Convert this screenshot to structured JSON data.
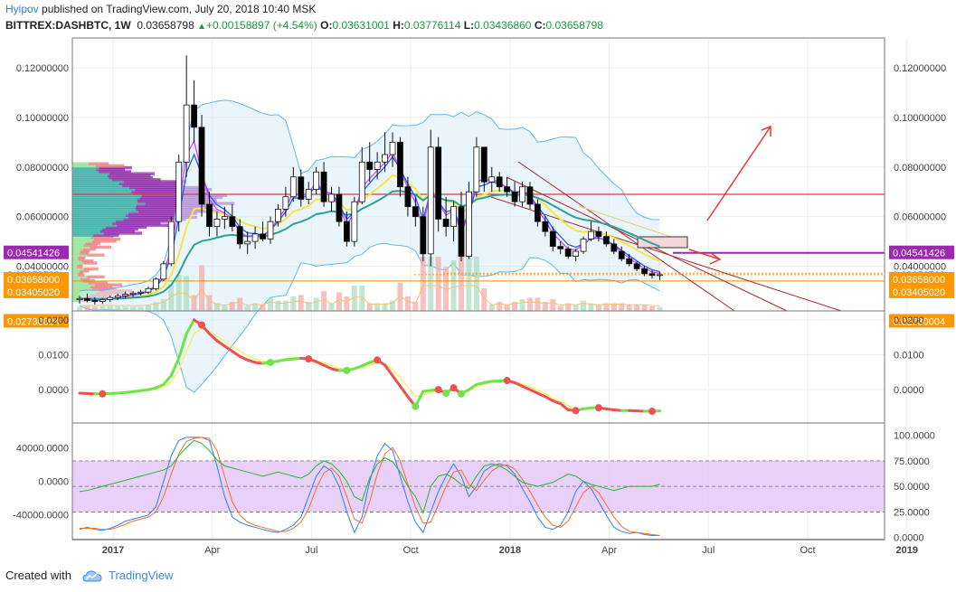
{
  "header": {
    "author": "Hyipov",
    "published": " published on TradingView.com, July 20, 2018 10:40 MSK",
    "symbol": "BITTREX:DASHBTC, 1W",
    "last": "0.03658798",
    "change_arrow": "▲",
    "change": "+0.00158897 (+4.54%)",
    "o_label": "O:",
    "o_value": "0.03631001",
    "h_label": "H:",
    "h_value": "0.03776114",
    "l_label": "L:",
    "l_value": "0.03436860",
    "c_label": "C:",
    "c_value": "0.03658798"
  },
  "footer": {
    "created_with": "Created with",
    "brand": "TradingView"
  },
  "colors": {
    "bull": "#ffffff",
    "bear": "#000000",
    "purple_level": "#9c27b0",
    "orange_level": "#ff9800",
    "red_level": "#e53935",
    "bb": "#5eb8f0",
    "ema_yellow": "#f5e642",
    "ema_teal": "#2aa198",
    "ema_blue": "#1e5cff",
    "ema_magenta": "#e040fb",
    "osc_up": "#6fe34a",
    "osc_down": "#f05050",
    "osc_signal": "#ffee58",
    "stoch_k": "#2f80ed",
    "stoch_d": "#f0702a",
    "stoch_rsi": "#22b82a",
    "stoch_band": "#e3c4f8"
  },
  "chart_data": [
    {
      "type": "candlestick",
      "pane": "price",
      "ylim": [
        0.022,
        0.132
      ],
      "yticks": [
        "0.12000000",
        "0.10000000",
        "0.08000000",
        "0.06000000",
        "0.04000000"
      ],
      "xticks": [
        "2017",
        "Apr",
        "Jul",
        "Oct",
        "2018",
        "Apr",
        "Jul",
        "Oct",
        "2019"
      ],
      "price_labels": [
        {
          "value": 0.04541426,
          "text": "0.04541426",
          "color": "#9c27b0"
        },
        {
          "value": 0.03658798,
          "text": "0.03658798",
          "color": "#ffffff"
        },
        {
          "value": 0.03658,
          "text": "0.03658000",
          "color": "#ff9800"
        },
        {
          "value": 0.0340502,
          "text": "0.03405020",
          "color": "#ff9800"
        },
        {
          "value": 0.02730004,
          "text": "0.02730004",
          "color": "#ff9800"
        }
      ],
      "levels": [
        {
          "value": 0.069,
          "color": "#e53935"
        },
        {
          "value": 0.04541426,
          "color": "#9c27b0"
        },
        {
          "value": 0.0340502,
          "color": "#ff9800"
        }
      ],
      "candles": [
        [
          0.0265,
          0.028,
          0.025,
          0.027
        ],
        [
          0.027,
          0.029,
          0.0255,
          0.0262
        ],
        [
          0.0262,
          0.0275,
          0.0245,
          0.0258
        ],
        [
          0.0258,
          0.0272,
          0.0248,
          0.0266
        ],
        [
          0.0266,
          0.0282,
          0.0256,
          0.0274
        ],
        [
          0.0274,
          0.029,
          0.0264,
          0.0281
        ],
        [
          0.0281,
          0.0298,
          0.027,
          0.0287
        ],
        [
          0.0287,
          0.03,
          0.0276,
          0.0292
        ],
        [
          0.0292,
          0.0305,
          0.0282,
          0.0296
        ],
        [
          0.0296,
          0.0318,
          0.0288,
          0.031
        ],
        [
          0.031,
          0.0355,
          0.0302,
          0.0348
        ],
        [
          0.0348,
          0.042,
          0.034,
          0.041
        ],
        [
          0.041,
          0.06,
          0.04,
          0.058
        ],
        [
          0.058,
          0.085,
          0.054,
          0.082
        ],
        [
          0.082,
          0.125,
          0.076,
          0.105
        ],
        [
          0.105,
          0.115,
          0.09,
          0.096
        ],
        [
          0.096,
          0.101,
          0.06,
          0.065
        ],
        [
          0.065,
          0.07,
          0.052,
          0.056
        ],
        [
          0.056,
          0.062,
          0.052,
          0.059
        ],
        [
          0.059,
          0.064,
          0.055,
          0.06
        ],
        [
          0.06,
          0.065,
          0.054,
          0.056
        ],
        [
          0.056,
          0.059,
          0.047,
          0.049
        ],
        [
          0.049,
          0.054,
          0.045,
          0.05
        ],
        [
          0.05,
          0.056,
          0.047,
          0.053
        ],
        [
          0.053,
          0.058,
          0.05,
          0.051
        ],
        [
          0.051,
          0.06,
          0.049,
          0.058
        ],
        [
          0.058,
          0.065,
          0.056,
          0.063
        ],
        [
          0.063,
          0.072,
          0.06,
          0.068
        ],
        [
          0.068,
          0.08,
          0.066,
          0.076
        ],
        [
          0.076,
          0.079,
          0.064,
          0.067
        ],
        [
          0.067,
          0.074,
          0.065,
          0.071
        ],
        [
          0.071,
          0.08,
          0.069,
          0.078
        ],
        [
          0.078,
          0.082,
          0.064,
          0.066
        ],
        [
          0.066,
          0.072,
          0.062,
          0.069
        ],
        [
          0.069,
          0.072,
          0.056,
          0.058
        ],
        [
          0.058,
          0.062,
          0.048,
          0.05
        ],
        [
          0.05,
          0.068,
          0.048,
          0.066
        ],
        [
          0.066,
          0.088,
          0.065,
          0.082
        ],
        [
          0.082,
          0.09,
          0.074,
          0.079
        ],
        [
          0.079,
          0.086,
          0.075,
          0.082
        ],
        [
          0.082,
          0.094,
          0.078,
          0.085
        ],
        [
          0.085,
          0.094,
          0.08,
          0.09
        ],
        [
          0.09,
          0.092,
          0.068,
          0.072
        ],
        [
          0.072,
          0.076,
          0.06,
          0.064
        ],
        [
          0.064,
          0.068,
          0.056,
          0.06
        ],
        [
          0.06,
          0.064,
          0.042,
          0.045
        ],
        [
          0.045,
          0.095,
          0.04,
          0.088
        ],
        [
          0.088,
          0.092,
          0.054,
          0.059
        ],
        [
          0.059,
          0.068,
          0.052,
          0.056
        ],
        [
          0.056,
          0.066,
          0.05,
          0.064
        ],
        [
          0.064,
          0.07,
          0.042,
          0.044
        ],
        [
          0.044,
          0.074,
          0.043,
          0.07
        ],
        [
          0.07,
          0.092,
          0.068,
          0.088
        ],
        [
          0.088,
          0.088,
          0.07,
          0.074
        ],
        [
          0.074,
          0.08,
          0.07,
          0.076
        ],
        [
          0.076,
          0.078,
          0.07,
          0.072
        ],
        [
          0.072,
          0.076,
          0.068,
          0.07
        ],
        [
          0.07,
          0.074,
          0.064,
          0.066
        ],
        [
          0.066,
          0.074,
          0.064,
          0.072
        ],
        [
          0.072,
          0.074,
          0.063,
          0.065
        ],
        [
          0.065,
          0.067,
          0.056,
          0.058
        ],
        [
          0.058,
          0.06,
          0.052,
          0.054
        ],
        [
          0.054,
          0.056,
          0.046,
          0.048
        ],
        [
          0.048,
          0.05,
          0.045,
          0.047
        ],
        [
          0.047,
          0.048,
          0.043,
          0.044
        ],
        [
          0.044,
          0.047,
          0.042,
          0.046
        ],
        [
          0.046,
          0.052,
          0.045,
          0.051
        ],
        [
          0.051,
          0.058,
          0.05,
          0.054
        ],
        [
          0.054,
          0.056,
          0.05,
          0.052
        ],
        [
          0.052,
          0.054,
          0.048,
          0.049
        ],
        [
          0.049,
          0.051,
          0.045,
          0.046
        ],
        [
          0.046,
          0.048,
          0.042,
          0.043
        ],
        [
          0.043,
          0.045,
          0.04,
          0.041
        ],
        [
          0.041,
          0.042,
          0.038,
          0.039
        ],
        [
          0.039,
          0.04,
          0.036,
          0.037
        ],
        [
          0.037,
          0.0385,
          0.035,
          0.0363
        ],
        [
          0.0363,
          0.0378,
          0.0344,
          0.0366
        ]
      ]
    },
    {
      "type": "line",
      "pane": "oscillator",
      "ylim": [
        -0.008,
        0.021
      ],
      "yticks": [
        "0.0200",
        "0.0100",
        "0.0000"
      ],
      "series": [
        {
          "values": [
            -0.001,
            -0.0011,
            -0.0012,
            -0.0012,
            -0.0011,
            -0.001,
            -0.0008,
            -0.0006,
            -0.0003,
            0.0,
            0.0005,
            0.0015,
            0.004,
            0.009,
            0.016,
            0.02,
            0.0185,
            0.016,
            0.014,
            0.0125,
            0.011,
            0.0095,
            0.0085,
            0.0078,
            0.0075,
            0.0078,
            0.0082,
            0.0086,
            0.0088,
            0.009,
            0.0088,
            0.008,
            0.007,
            0.006,
            0.0055,
            0.0055,
            0.006,
            0.0068,
            0.0078,
            0.0085,
            0.007,
            0.004,
            0.001,
            -0.002,
            -0.0048,
            -0.0005,
            -0.0002,
            0.0,
            -0.001,
            0.0005,
            -0.0012,
            0.0,
            0.0015,
            0.002,
            0.0024,
            0.0025,
            0.0026,
            0.002,
            0.001,
            0.0,
            -0.001,
            -0.002,
            -0.0032,
            -0.004,
            -0.0058,
            -0.006,
            -0.0055,
            -0.0052,
            -0.0052,
            -0.0055,
            -0.0058,
            -0.006,
            -0.006,
            -0.0061,
            -0.0062,
            -0.0062,
            -0.0061
          ]
        },
        {
          "values": [
            -0.001,
            -0.001,
            -0.0011,
            -0.0011,
            -0.0011,
            -0.001,
            -0.0009,
            -0.0007,
            -0.0005,
            -0.0002,
            0.0002,
            0.0008,
            0.0022,
            0.0055,
            0.011,
            0.016,
            0.0175,
            0.0168,
            0.0152,
            0.0138,
            0.0124,
            0.011,
            0.0098,
            0.0088,
            0.0082,
            0.008,
            0.0081,
            0.0083,
            0.0085,
            0.0087,
            0.0088,
            0.0084,
            0.0077,
            0.0069,
            0.0062,
            0.0059,
            0.0059,
            0.0063,
            0.007,
            0.0077,
            0.0074,
            0.0058,
            0.0034,
            0.0008,
            -0.002,
            -0.0014,
            -0.0008,
            -0.0004,
            -0.0007,
            -0.0001,
            -0.0006,
            -0.0003,
            0.0008,
            0.0015,
            0.002,
            0.0023,
            0.0025,
            0.0023,
            0.0016,
            0.0008,
            -0.0002,
            -0.0012,
            -0.0024,
            -0.0034,
            -0.0046,
            -0.0054,
            -0.0055,
            -0.0053,
            -0.0052,
            -0.0054,
            -0.0056,
            -0.0058,
            -0.0059,
            -0.006,
            -0.0061,
            -0.0061,
            -0.0061
          ]
        }
      ]
    },
    {
      "type": "line",
      "pane": "stochastic",
      "left_ylim": [
        -70000,
        70000
      ],
      "left_yticks": [
        "40000.0000",
        "0.0000",
        "-40000.0000"
      ],
      "right_ylim": [
        -2,
        112
      ],
      "right_yticks": [
        "100.0000",
        "75.0000",
        "50.0000",
        "25.0000",
        "0.0000"
      ],
      "band": [
        25,
        75
      ],
      "series": [
        {
          "values": [
            8,
            10,
            8,
            7,
            9,
            12,
            16,
            18,
            20,
            22,
            30,
            55,
            80,
            95,
            98,
            98,
            98,
            95,
            70,
            40,
            20,
            15,
            12,
            10,
            8,
            6,
            5,
            8,
            12,
            20,
            40,
            60,
            70,
            65,
            50,
            25,
            5,
            20,
            55,
            80,
            92,
            85,
            60,
            35,
            15,
            5,
            25,
            45,
            60,
            72,
            60,
            40,
            50,
            65,
            70,
            72,
            70,
            62,
            48,
            35,
            20,
            10,
            8,
            12,
            25,
            45,
            55,
            48,
            35,
            22,
            10,
            6,
            4,
            5,
            3,
            2,
            2
          ]
        },
        {
          "values": [
            9,
            9,
            9,
            8,
            8,
            10,
            13,
            16,
            18,
            20,
            25,
            40,
            62,
            82,
            94,
            97,
            98,
            97,
            85,
            60,
            35,
            22,
            15,
            12,
            10,
            8,
            6,
            6,
            9,
            15,
            28,
            48,
            63,
            68,
            60,
            40,
            18,
            14,
            35,
            62,
            82,
            88,
            75,
            52,
            30,
            14,
            15,
            32,
            50,
            64,
            66,
            52,
            46,
            56,
            65,
            70,
            71,
            67,
            57,
            45,
            32,
            20,
            12,
            10,
            16,
            30,
            44,
            50,
            44,
            32,
            20,
            11,
            6,
            5,
            4,
            3,
            2
          ]
        },
        {
          "values": [
            45,
            46,
            48,
            50,
            52,
            54,
            56,
            58,
            60,
            62,
            64,
            66,
            70,
            80,
            88,
            95,
            92,
            85,
            76,
            70,
            68,
            66,
            64,
            62,
            60,
            62,
            64,
            62,
            60,
            58,
            62,
            70,
            75,
            72,
            65,
            55,
            40,
            36,
            58,
            72,
            78,
            74,
            64,
            50,
            40,
            24,
            50,
            60,
            62,
            58,
            52,
            48,
            60,
            70,
            72,
            70,
            66,
            60,
            54,
            52,
            50,
            52,
            54,
            58,
            62,
            60,
            55,
            52,
            50,
            48,
            46,
            48,
            50,
            50,
            50,
            50,
            52
          ]
        }
      ]
    }
  ]
}
